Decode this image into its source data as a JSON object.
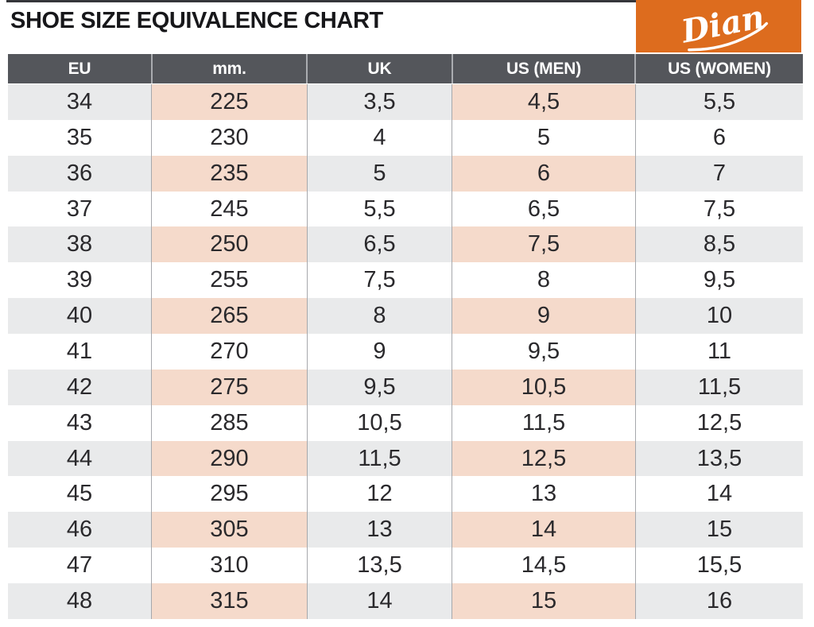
{
  "title": "SHOE SIZE EQUIVALENCE CHART",
  "brand": {
    "name": "Dian"
  },
  "colors": {
    "accent_orange": "#DD6C1E",
    "header_bg": "#54565B",
    "row_gray": "#E9EAEB",
    "row_pink": "#F5DACB",
    "divider": "#A6A8AC",
    "title_text": "#17171A",
    "cell_text": "#2A292C"
  },
  "table": {
    "headers": [
      "EU",
      "mm.",
      "UK",
      "US (MEN)",
      "US (WOMEN)"
    ],
    "rows": [
      [
        "34",
        "225",
        "3,5",
        "4,5",
        "5,5"
      ],
      [
        "35",
        "230",
        "4",
        "5",
        "6"
      ],
      [
        "36",
        "235",
        "5",
        "6",
        "7"
      ],
      [
        "37",
        "245",
        "5,5",
        "6,5",
        "7,5"
      ],
      [
        "38",
        "250",
        "6,5",
        "7,5",
        "8,5"
      ],
      [
        "39",
        "255",
        "7,5",
        "8",
        "9,5"
      ],
      [
        "40",
        "265",
        "8",
        "9",
        "10"
      ],
      [
        "41",
        "270",
        "9",
        "9,5",
        "11"
      ],
      [
        "42",
        "275",
        "9,5",
        "10,5",
        "11,5"
      ],
      [
        "43",
        "285",
        "10,5",
        "11,5",
        "12,5"
      ],
      [
        "44",
        "290",
        "11,5",
        "12,5",
        "13,5"
      ],
      [
        "45",
        "295",
        "12",
        "13",
        "14"
      ],
      [
        "46",
        "305",
        "13",
        "14",
        "15"
      ],
      [
        "47",
        "310",
        "13,5",
        "14,5",
        "15,5"
      ],
      [
        "48",
        "315",
        "14",
        "15",
        "16"
      ]
    ]
  },
  "chart_data": {
    "type": "table",
    "title": "SHOE SIZE EQUIVALENCE CHART",
    "columns": [
      "EU",
      "mm.",
      "UK",
      "US (MEN)",
      "US (WOMEN)"
    ],
    "rows": [
      [
        "34",
        "225",
        "3,5",
        "4,5",
        "5,5"
      ],
      [
        "35",
        "230",
        "4",
        "5",
        "6"
      ],
      [
        "36",
        "235",
        "5",
        "6",
        "7"
      ],
      [
        "37",
        "245",
        "5,5",
        "6,5",
        "7,5"
      ],
      [
        "38",
        "250",
        "6,5",
        "7,5",
        "8,5"
      ],
      [
        "39",
        "255",
        "7,5",
        "8",
        "9,5"
      ],
      [
        "40",
        "265",
        "8",
        "9",
        "10"
      ],
      [
        "41",
        "270",
        "9",
        "9,5",
        "11"
      ],
      [
        "42",
        "275",
        "9,5",
        "10,5",
        "11,5"
      ],
      [
        "43",
        "285",
        "10,5",
        "11,5",
        "12,5"
      ],
      [
        "44",
        "290",
        "11,5",
        "12,5",
        "13,5"
      ],
      [
        "45",
        "295",
        "12",
        "13",
        "14"
      ],
      [
        "46",
        "305",
        "13",
        "14",
        "15"
      ],
      [
        "47",
        "310",
        "13,5",
        "14,5",
        "15,5"
      ],
      [
        "48",
        "315",
        "14",
        "15",
        "16"
      ]
    ],
    "layout_hints": {
      "shaded_rows": "every other row starting with EU 34 (even EU sizes)",
      "highlight_columns": [
        "mm.",
        "US (MEN)"
      ]
    }
  }
}
